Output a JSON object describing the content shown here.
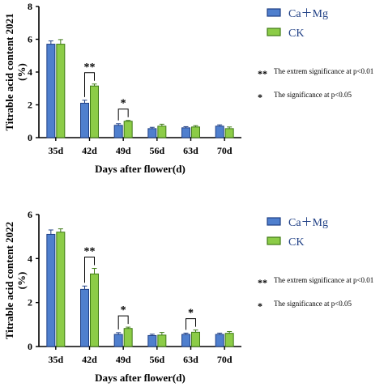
{
  "colors": {
    "ca_mg_fill": "#4f7fce",
    "ca_mg_stroke": "#1f3f85",
    "ck_fill": "#8ccc47",
    "ck_stroke": "#3f7a16",
    "axis": "#000000"
  },
  "chart_data": [
    {
      "type": "bar",
      "ylabel_line1": "Titrable acid content 2021",
      "ylabel_line2": "(%)",
      "xlabel": "Days after flower(d)",
      "ylim": [
        0,
        8
      ],
      "yticks": [
        "0",
        "2",
        "4",
        "6",
        "8"
      ],
      "categories": [
        "35d",
        "42d",
        "49d",
        "56d",
        "63d",
        "70d"
      ],
      "series": [
        {
          "name": "Ca＋Mg",
          "values": [
            5.7,
            2.1,
            0.75,
            0.55,
            0.6,
            0.7
          ],
          "errors": [
            0.2,
            0.18,
            0.1,
            0.08,
            0.07,
            0.08
          ]
        },
        {
          "name": "CK",
          "values": [
            5.7,
            3.15,
            1.0,
            0.7,
            0.65,
            0.55
          ],
          "errors": [
            0.28,
            0.12,
            0.05,
            0.12,
            0.08,
            0.1
          ]
        }
      ],
      "significance": [
        {
          "category": "42d",
          "mark": "**"
        },
        {
          "category": "49d",
          "mark": "*"
        }
      ],
      "notes": [
        {
          "mark": "**",
          "text": "The extrem significance at p<0.01"
        },
        {
          "mark": "*",
          "text": "The significance at p<0.05"
        }
      ]
    },
    {
      "type": "bar",
      "ylabel_line1": "Titrable acid content 2022",
      "ylabel_line2": "(%)",
      "xlabel": "Days after flower(d)",
      "ylim": [
        0,
        6
      ],
      "yticks": [
        "0",
        "2",
        "4",
        "6"
      ],
      "categories": [
        "35d",
        "42d",
        "49d",
        "56d",
        "63d",
        "70d"
      ],
      "series": [
        {
          "name": "Ca＋Mg",
          "values": [
            5.1,
            2.6,
            0.55,
            0.5,
            0.55,
            0.55
          ],
          "errors": [
            0.2,
            0.15,
            0.08,
            0.06,
            0.06,
            0.06
          ]
        },
        {
          "name": "CK",
          "values": [
            5.2,
            3.3,
            0.82,
            0.52,
            0.65,
            0.6
          ],
          "errors": [
            0.15,
            0.25,
            0.06,
            0.12,
            0.1,
            0.08
          ]
        }
      ],
      "significance": [
        {
          "category": "42d",
          "mark": "**"
        },
        {
          "category": "49d",
          "mark": "*"
        },
        {
          "category": "63d",
          "mark": "*"
        }
      ],
      "notes": [
        {
          "mark": "**",
          "text": "The extrem significance at p<0.01"
        },
        {
          "mark": "*",
          "text": "The significance at p<0.05"
        }
      ]
    }
  ]
}
